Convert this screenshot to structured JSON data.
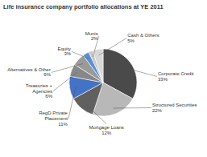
{
  "chart_data": {
    "type": "pie",
    "title": "Life insurance company portfolio allocations at YE 2011",
    "categories": [
      "Corporate Credit",
      "Structured Securities",
      "Mortgage Loans",
      "RegD Private\nPlacement",
      "Treasuries +\nAgencies",
      "Alternatives & Other",
      "Equity",
      "Munis",
      "Cash & Others"
    ],
    "values": [
      33,
      22,
      12,
      11,
      6,
      6,
      3,
      2,
      5
    ],
    "value_labels": [
      "33%",
      "22%",
      "12%",
      "11%",
      "6%",
      "6%",
      "3%",
      "2%",
      "5%"
    ],
    "data_labels": true,
    "colors": [
      "#4a4a4a",
      "#b8b8b8",
      "#606060",
      "#4472c4",
      "#888888",
      "#9a9a9a",
      "#5b8fd6",
      "#c8c8c8",
      "#d8d8d8"
    ]
  }
}
